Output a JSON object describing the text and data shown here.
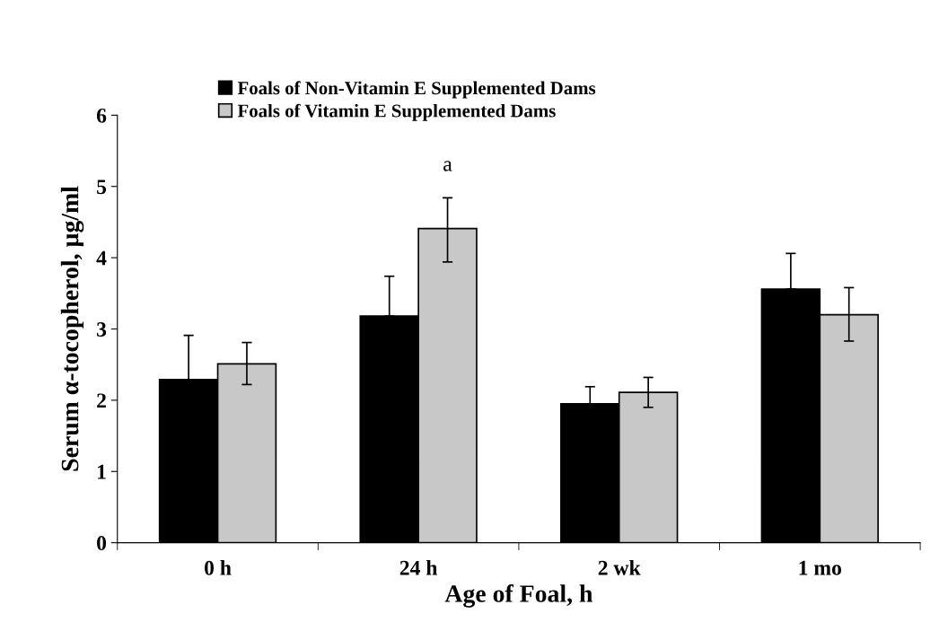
{
  "chart_data": {
    "type": "bar",
    "xlabel": "Age of Foal, h",
    "ylabel": "Serum α-tocopherol, µg/ml",
    "categories": [
      "0 h",
      "24 h",
      "2 wk",
      "1 mo"
    ],
    "series": [
      {
        "name": "Foals of Non-Vitamin E Supplemented Dams",
        "color": "#000000",
        "values": [
          2.29,
          3.18,
          1.95,
          3.56
        ],
        "errors": [
          [
            2.29,
            2.91
          ],
          [
            3.18,
            3.74
          ],
          [
            1.95,
            2.19
          ],
          [
            3.56,
            4.06
          ]
        ]
      },
      {
        "name": "Foals of Vitamin E Supplemented Dams",
        "color": "#c8c8c8",
        "values": [
          2.51,
          4.41,
          2.11,
          3.2
        ],
        "errors": [
          [
            2.22,
            2.81
          ],
          [
            3.94,
            4.84
          ],
          [
            1.9,
            2.32
          ],
          [
            2.83,
            3.58
          ]
        ]
      }
    ],
    "annotations": [
      "a"
    ],
    "ylim": [
      0,
      6
    ],
    "yticks": [
      0,
      1,
      2,
      3,
      4,
      5,
      6
    ],
    "grid": false,
    "legend": "top"
  }
}
